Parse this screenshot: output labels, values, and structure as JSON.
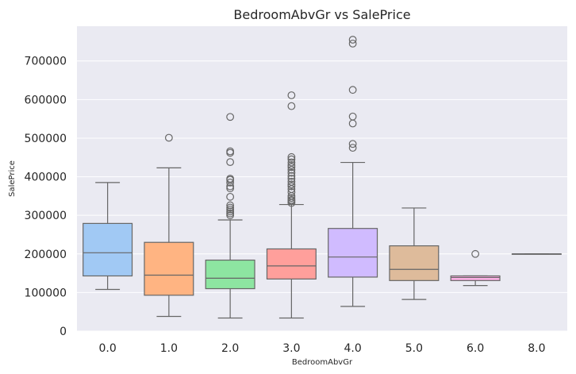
{
  "chart_data": {
    "type": "box",
    "title": "BedroomAbvGr vs SalePrice",
    "xlabel": "BedroomAbvGr",
    "ylabel": "SalePrice",
    "ylim": [
      0,
      790000
    ],
    "yticks": [
      0,
      100000,
      200000,
      300000,
      400000,
      500000,
      600000,
      700000
    ],
    "ytick_labels": [
      "0",
      "100000",
      "200000",
      "300000",
      "400000",
      "500000",
      "600000",
      "700000"
    ],
    "grid": true,
    "background": "#eaeaf2",
    "line_color": "#666666",
    "categories": [
      "0.0",
      "1.0",
      "2.0",
      "3.0",
      "4.0",
      "5.0",
      "6.0",
      "8.0"
    ],
    "boxes": [
      {
        "category": "0.0",
        "color": "#a1c9f4",
        "whislo": 108000,
        "q1": 143000,
        "median": 203000,
        "q3": 279000,
        "whishi": 385000,
        "outliers": []
      },
      {
        "category": "1.0",
        "color": "#ffb482",
        "whislo": 38000,
        "q1": 93000,
        "median": 145000,
        "q3": 230000,
        "whishi": 423000,
        "outliers": [
          501000
        ]
      },
      {
        "category": "2.0",
        "color": "#8de5a1",
        "whislo": 34000,
        "q1": 110000,
        "median": 137000,
        "q3": 184000,
        "whishi": 288000,
        "outliers": [
          300000,
          305000,
          310000,
          315000,
          320000,
          326000,
          348000,
          370000,
          375000,
          385000,
          392000,
          395000,
          438000,
          462000,
          466000,
          555000
        ]
      },
      {
        "category": "3.0",
        "color": "#ff9f9b",
        "whislo": 34000,
        "q1": 135000,
        "median": 169000,
        "q3": 213000,
        "whishi": 328000,
        "outliers": [
          332000,
          337000,
          340000,
          345000,
          350000,
          360000,
          368000,
          375000,
          380000,
          387000,
          395000,
          402000,
          410000,
          418000,
          425000,
          430000,
          437000,
          445000,
          451000,
          583000,
          611000
        ]
      },
      {
        "category": "4.0",
        "color": "#d0bbff",
        "whislo": 64000,
        "q1": 140000,
        "median": 192000,
        "q3": 266000,
        "whishi": 437000,
        "outliers": [
          475000,
          485000,
          538000,
          556000,
          625000,
          745000,
          755000
        ]
      },
      {
        "category": "5.0",
        "color": "#debb9b",
        "whislo": 82000,
        "q1": 131000,
        "median": 160000,
        "q3": 221000,
        "whishi": 319000,
        "outliers": []
      },
      {
        "category": "6.0",
        "color": "#fab0e4",
        "whislo": 118000,
        "q1": 131000,
        "median": 139000,
        "q3": 143000,
        "whishi": 143000,
        "outliers": [
          200000
        ]
      },
      {
        "category": "8.0",
        "color": "#cfcfcf",
        "whislo": 200000,
        "q1": 200000,
        "median": 200000,
        "q3": 200000,
        "whishi": 200000,
        "outliers": []
      }
    ]
  }
}
